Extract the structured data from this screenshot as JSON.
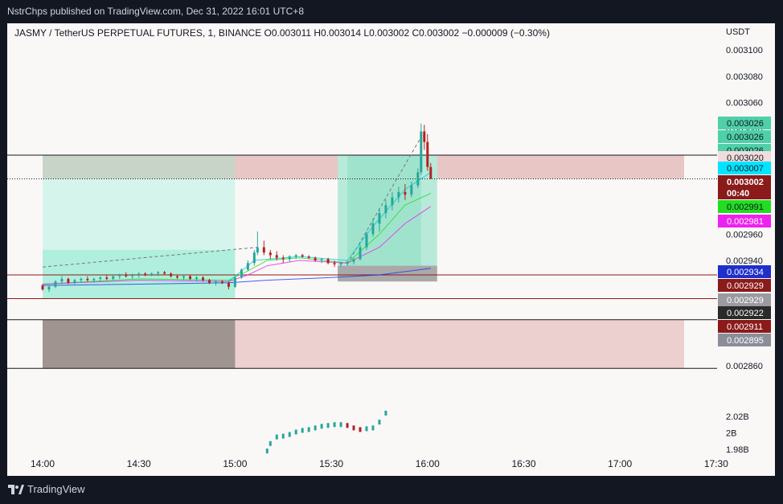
{
  "header": {
    "publish_line": "NstrChps published on TradingView.com, Dec 31, 2022 16:01 UTC+8"
  },
  "footer": {
    "brand": "TradingView",
    "logo_icon": "tradingview-logo-icon"
  },
  "symbol_line": "JASMY / TetherUS PERPETUAL FUTURES, 1, BINANCE  O0.003011  H0.003014  L0.003002  C0.003002  −0.000009 (−0.30%)",
  "currency": "USDT",
  "chart_data": {
    "type": "candlestick",
    "symbol": "JASMY / TetherUS PERPETUAL FUTURES",
    "interval": "1",
    "exchange": "BINANCE",
    "ohlc_header": {
      "open": 0.003011,
      "high": 0.003014,
      "low": 0.003002,
      "close": 0.003002,
      "change": -9e-06,
      "change_pct": -0.3
    },
    "price_axis": {
      "range": [
        0.002856,
        0.003105
      ],
      "ticks": [
        "0.003100",
        "0.003080",
        "0.003060",
        "0.003040",
        "0.003020",
        "0.003000",
        "0.002980",
        "0.002960",
        "0.002940",
        "0.002920",
        "0.002900",
        "0.002880",
        "0.002860"
      ],
      "tick_values": [
        0.0031,
        0.00308,
        0.00306,
        0.00304,
        0.00302,
        0.003,
        0.00298,
        0.00296,
        0.00294,
        0.00292,
        0.0029,
        0.00288,
        0.00286
      ]
    },
    "time_axis": {
      "ticks": [
        "14:00",
        "14:30",
        "15:00",
        "15:30",
        "16:00",
        "16:30",
        "17:00",
        "17:30"
      ],
      "tick_minutes": [
        0,
        30,
        60,
        90,
        120,
        150,
        180,
        210
      ]
    },
    "price_labels": [
      {
        "text": "0.003026",
        "bg": "#4fd0a8",
        "fg": "#131722"
      },
      {
        "text": "0.003026",
        "bg": "#4fd0a8",
        "fg": "#131722"
      },
      {
        "text": "0.003026",
        "bg": "#4fd0a8",
        "fg": "#131722"
      },
      {
        "text": "0.003020",
        "bg": "#f2dcdc",
        "fg": "#131722"
      },
      {
        "text": "0.003007",
        "bg": "#00e5ff",
        "fg": "#131722"
      },
      {
        "text": "0.003002",
        "bg": "#8b1a1a",
        "fg": "#ffffff"
      },
      {
        "text": "00:40",
        "bg": "#8b1a1a",
        "fg": "#ffffff"
      },
      {
        "text": "0.002991",
        "bg": "#22dd22",
        "fg": "#131722"
      },
      {
        "text": "0.002981",
        "bg": "#ee22ee",
        "fg": "#ffffff"
      },
      {
        "text": "0.002934",
        "bg": "#1f2fcc",
        "fg": "#ffffff"
      },
      {
        "text": "0.002929",
        "bg": "#8b1a1a",
        "fg": "#ffffff"
      },
      {
        "text": "0.002929",
        "bg": "#9a9aa0",
        "fg": "#ffffff"
      },
      {
        "text": "0.002922",
        "bg": "#2a2a2a",
        "fg": "#ffffff"
      },
      {
        "text": "0.002911",
        "bg": "#8b1a1a",
        "fg": "#ffffff"
      },
      {
        "text": "0.002895",
        "bg": "#8a8e98",
        "fg": "#ffffff"
      }
    ],
    "price_label_values": [
      0.003026,
      0.003026,
      0.003026,
      0.00302,
      0.003007,
      0.003002,
      0.003002,
      0.002991,
      0.002981,
      0.002934,
      0.002929,
      0.002929,
      0.002922,
      0.002911,
      0.002895
    ],
    "candles": [
      {
        "t": 0,
        "o": 0.002921,
        "h": 0.002922,
        "l": 0.002917,
        "c": 0.002918
      },
      {
        "t": 2,
        "o": 0.002918,
        "h": 0.002921,
        "l": 0.002916,
        "c": 0.00292
      },
      {
        "t": 4,
        "o": 0.00292,
        "h": 0.002925,
        "l": 0.002919,
        "c": 0.002924
      },
      {
        "t": 6,
        "o": 0.002924,
        "h": 0.002928,
        "l": 0.002922,
        "c": 0.002926
      },
      {
        "t": 8,
        "o": 0.002926,
        "h": 0.002927,
        "l": 0.002922,
        "c": 0.002923
      },
      {
        "t": 10,
        "o": 0.002923,
        "h": 0.002926,
        "l": 0.002921,
        "c": 0.002925
      },
      {
        "t": 12,
        "o": 0.002925,
        "h": 0.002927,
        "l": 0.002923,
        "c": 0.002926
      },
      {
        "t": 14,
        "o": 0.002926,
        "h": 0.002928,
        "l": 0.002924,
        "c": 0.002925
      },
      {
        "t": 16,
        "o": 0.002925,
        "h": 0.002927,
        "l": 0.002923,
        "c": 0.002926
      },
      {
        "t": 18,
        "o": 0.002926,
        "h": 0.002928,
        "l": 0.002924,
        "c": 0.002927
      },
      {
        "t": 20,
        "o": 0.002927,
        "h": 0.002929,
        "l": 0.002925,
        "c": 0.002926
      },
      {
        "t": 22,
        "o": 0.002926,
        "h": 0.002929,
        "l": 0.002925,
        "c": 0.002928
      },
      {
        "t": 24,
        "o": 0.002928,
        "h": 0.00293,
        "l": 0.002926,
        "c": 0.002929
      },
      {
        "t": 26,
        "o": 0.002929,
        "h": 0.002931,
        "l": 0.002927,
        "c": 0.002928
      },
      {
        "t": 28,
        "o": 0.002928,
        "h": 0.00293,
        "l": 0.002926,
        "c": 0.002929
      },
      {
        "t": 30,
        "o": 0.002929,
        "h": 0.002931,
        "l": 0.002927,
        "c": 0.00293
      },
      {
        "t": 32,
        "o": 0.00293,
        "h": 0.002931,
        "l": 0.002928,
        "c": 0.002929
      },
      {
        "t": 34,
        "o": 0.002929,
        "h": 0.002931,
        "l": 0.002928,
        "c": 0.00293
      },
      {
        "t": 36,
        "o": 0.00293,
        "h": 0.002932,
        "l": 0.002928,
        "c": 0.002931
      },
      {
        "t": 38,
        "o": 0.002931,
        "h": 0.002932,
        "l": 0.002929,
        "c": 0.00293
      },
      {
        "t": 40,
        "o": 0.00293,
        "h": 0.002931,
        "l": 0.002927,
        "c": 0.002928
      },
      {
        "t": 42,
        "o": 0.002928,
        "h": 0.002929,
        "l": 0.002926,
        "c": 0.002927
      },
      {
        "t": 44,
        "o": 0.002927,
        "h": 0.002929,
        "l": 0.002925,
        "c": 0.002928
      },
      {
        "t": 46,
        "o": 0.002928,
        "h": 0.002929,
        "l": 0.002925,
        "c": 0.002926
      },
      {
        "t": 48,
        "o": 0.002926,
        "h": 0.002928,
        "l": 0.002924,
        "c": 0.002927
      },
      {
        "t": 50,
        "o": 0.002927,
        "h": 0.002928,
        "l": 0.002924,
        "c": 0.002925
      },
      {
        "t": 52,
        "o": 0.002925,
        "h": 0.002926,
        "l": 0.002922,
        "c": 0.002923
      },
      {
        "t": 54,
        "o": 0.002923,
        "h": 0.002925,
        "l": 0.002921,
        "c": 0.002924
      },
      {
        "t": 56,
        "o": 0.002924,
        "h": 0.002925,
        "l": 0.002922,
        "c": 0.002923
      },
      {
        "t": 58,
        "o": 0.002923,
        "h": 0.002924,
        "l": 0.002918,
        "c": 0.00292
      },
      {
        "t": 60,
        "o": 0.00292,
        "h": 0.002928,
        "l": 0.002919,
        "c": 0.002927
      },
      {
        "t": 62,
        "o": 0.002927,
        "h": 0.002934,
        "l": 0.002926,
        "c": 0.002933
      },
      {
        "t": 64,
        "o": 0.002933,
        "h": 0.00294,
        "l": 0.002932,
        "c": 0.002938
      },
      {
        "t": 66,
        "o": 0.002938,
        "h": 0.002948,
        "l": 0.002936,
        "c": 0.002946
      },
      {
        "t": 67,
        "o": 0.002946,
        "h": 0.002962,
        "l": 0.002944,
        "c": 0.00295
      },
      {
        "t": 69,
        "o": 0.00295,
        "h": 0.002955,
        "l": 0.002944,
        "c": 0.002946
      },
      {
        "t": 71,
        "o": 0.002946,
        "h": 0.002948,
        "l": 0.002941,
        "c": 0.002944
      },
      {
        "t": 73,
        "o": 0.002944,
        "h": 0.002947,
        "l": 0.00294,
        "c": 0.002942
      },
      {
        "t": 75,
        "o": 0.002942,
        "h": 0.002944,
        "l": 0.002938,
        "c": 0.002941
      },
      {
        "t": 77,
        "o": 0.002941,
        "h": 0.002944,
        "l": 0.002939,
        "c": 0.002943
      },
      {
        "t": 79,
        "o": 0.002943,
        "h": 0.002945,
        "l": 0.002941,
        "c": 0.002944
      },
      {
        "t": 81,
        "o": 0.002944,
        "h": 0.002945,
        "l": 0.002942,
        "c": 0.002943
      },
      {
        "t": 83,
        "o": 0.002943,
        "h": 0.002944,
        "l": 0.002941,
        "c": 0.002942
      },
      {
        "t": 85,
        "o": 0.002942,
        "h": 0.002943,
        "l": 0.002939,
        "c": 0.00294
      },
      {
        "t": 87,
        "o": 0.00294,
        "h": 0.002942,
        "l": 0.002938,
        "c": 0.002941
      },
      {
        "t": 89,
        "o": 0.002941,
        "h": 0.002942,
        "l": 0.002937,
        "c": 0.002938
      },
      {
        "t": 91,
        "o": 0.002938,
        "h": 0.00294,
        "l": 0.002935,
        "c": 0.002937
      },
      {
        "t": 93,
        "o": 0.002937,
        "h": 0.002939,
        "l": 0.002935,
        "c": 0.002938
      },
      {
        "t": 95,
        "o": 0.002938,
        "h": 0.00294,
        "l": 0.002936,
        "c": 0.002939
      },
      {
        "t": 97,
        "o": 0.002939,
        "h": 0.002942,
        "l": 0.002937,
        "c": 0.002941
      },
      {
        "t": 99,
        "o": 0.002941,
        "h": 0.002952,
        "l": 0.00294,
        "c": 0.00295
      },
      {
        "t": 101,
        "o": 0.00295,
        "h": 0.002962,
        "l": 0.002948,
        "c": 0.00296
      },
      {
        "t": 103,
        "o": 0.00296,
        "h": 0.002972,
        "l": 0.002958,
        "c": 0.002968
      },
      {
        "t": 105,
        "o": 0.002968,
        "h": 0.00298,
        "l": 0.002962,
        "c": 0.002976
      },
      {
        "t": 107,
        "o": 0.002976,
        "h": 0.002986,
        "l": 0.002972,
        "c": 0.002982
      },
      {
        "t": 109,
        "o": 0.002982,
        "h": 0.002992,
        "l": 0.002978,
        "c": 0.002988
      },
      {
        "t": 111,
        "o": 0.002988,
        "h": 0.002996,
        "l": 0.002984,
        "c": 0.002992
      },
      {
        "t": 113,
        "o": 0.002992,
        "h": 0.002998,
        "l": 0.002986,
        "c": 0.00299
      },
      {
        "t": 115,
        "o": 0.00299,
        "h": 0.003,
        "l": 0.002988,
        "c": 0.002997
      },
      {
        "t": 117,
        "o": 0.002997,
        "h": 0.00301,
        "l": 0.002995,
        "c": 0.003007
      },
      {
        "t": 118,
        "o": 0.003007,
        "h": 0.003044,
        "l": 0.003005,
        "c": 0.003038
      },
      {
        "t": 119,
        "o": 0.003038,
        "h": 0.003043,
        "l": 0.003024,
        "c": 0.00303
      },
      {
        "t": 120,
        "o": 0.00303,
        "h": 0.003036,
        "l": 0.003008,
        "c": 0.003011
      },
      {
        "t": 121,
        "o": 0.003011,
        "h": 0.003014,
        "l": 0.003002,
        "c": 0.003002
      }
    ],
    "moving_averages": [
      {
        "color": "#22dd22",
        "points": [
          [
            0,
            0.002922
          ],
          [
            30,
            0.002926
          ],
          [
            58,
            0.002925
          ],
          [
            64,
            0.002932
          ],
          [
            70,
            0.00294
          ],
          [
            80,
            0.002942
          ],
          [
            95,
            0.002938
          ],
          [
            105,
            0.00296
          ],
          [
            113,
            0.002982
          ],
          [
            121,
            0.002991
          ]
        ]
      },
      {
        "color": "#ee22ee",
        "points": [
          [
            0,
            0.002922
          ],
          [
            30,
            0.002925
          ],
          [
            58,
            0.002924
          ],
          [
            64,
            0.002929
          ],
          [
            70,
            0.002936
          ],
          [
            80,
            0.00294
          ],
          [
            95,
            0.002938
          ],
          [
            105,
            0.00295
          ],
          [
            113,
            0.002968
          ],
          [
            121,
            0.002981
          ]
        ]
      },
      {
        "color": "#2233ee",
        "points": [
          [
            0,
            0.002921
          ],
          [
            30,
            0.002922
          ],
          [
            58,
            0.002923
          ],
          [
            70,
            0.002925
          ],
          [
            90,
            0.002927
          ],
          [
            105,
            0.002929
          ],
          [
            121,
            0.002934
          ]
        ]
      },
      {
        "color": "#00cccc",
        "points": [
          [
            58,
            0.002924
          ],
          [
            66,
            0.00294
          ],
          [
            80,
            0.002943
          ],
          [
            95,
            0.00294
          ],
          [
            103,
            0.002966
          ],
          [
            113,
            0.002994
          ],
          [
            121,
            0.003007
          ]
        ]
      }
    ],
    "horizontal_levels": [
      {
        "price": 0.00302,
        "color": "#131722"
      },
      {
        "price": 0.003002,
        "color": "#131722",
        "style": "dotted"
      },
      {
        "price": 0.002929,
        "color": "#8b1a1a"
      },
      {
        "price": 0.002911,
        "color": "#8b1a1a"
      },
      {
        "price": 0.002895,
        "color": "#131722"
      },
      {
        "price": 0.002858,
        "color": "#131722"
      }
    ],
    "zones": [
      {
        "t0": 0,
        "t1": 200,
        "p0": 0.00302,
        "p1": 0.003002,
        "color": "#e8c6c6"
      },
      {
        "t0": 0,
        "t1": 60,
        "p0": 0.00302,
        "p1": 0.003002,
        "color": "#c8d4c8"
      },
      {
        "t0": 0,
        "t1": 200,
        "p0": 0.002895,
        "p1": 0.002858,
        "color": "#ecd0d0"
      },
      {
        "t0": 0,
        "t1": 60,
        "p0": 0.002895,
        "p1": 0.002858,
        "color": "#a09490"
      },
      {
        "t0": 0,
        "t1": 60,
        "p0": 0.003002,
        "p1": 0.002929,
        "color": "#d5f5ec"
      },
      {
        "t0": 0,
        "t1": 60,
        "p0": 0.002948,
        "p1": 0.002911,
        "color": "#b0efdd"
      },
      {
        "t0": 92,
        "t1": 123,
        "p0": 0.00302,
        "p1": 0.002936,
        "color": "#b8ead9"
      },
      {
        "t0": 95,
        "t1": 118,
        "p0": 0.00302,
        "p1": 0.002936,
        "color": "#a0e3cd"
      },
      {
        "t0": 92,
        "t1": 123,
        "p0": 0.002936,
        "p1": 0.002924,
        "color": "#a9a9a9"
      }
    ],
    "trend_lines": [
      {
        "from": [
          0,
          0.002935
        ],
        "to": [
          67,
          0.00295
        ],
        "color": "#777777",
        "style": "dashed"
      },
      {
        "from": [
          95,
          0.002937
        ],
        "to": [
          119,
          0.003038
        ],
        "color": "#777777",
        "style": "dashed"
      }
    ],
    "volume_axis": {
      "ticks": [
        "2.02B",
        "2B",
        "1.98B"
      ],
      "tick_values": [
        2.02,
        2.0,
        1.98
      ]
    },
    "volume_series": [
      {
        "t": 70,
        "v": 1.978
      },
      {
        "t": 71,
        "v": 1.987
      },
      {
        "t": 73,
        "v": 1.995
      },
      {
        "t": 75,
        "v": 1.996
      },
      {
        "t": 77,
        "v": 1.998
      },
      {
        "t": 79,
        "v": 2.001
      },
      {
        "t": 81,
        "v": 2.003
      },
      {
        "t": 83,
        "v": 2.004
      },
      {
        "t": 85,
        "v": 2.006
      },
      {
        "t": 87,
        "v": 2.008
      },
      {
        "t": 89,
        "v": 2.009
      },
      {
        "t": 91,
        "v": 2.01
      },
      {
        "t": 93,
        "v": 2.01
      },
      {
        "t": 95,
        "v": 2.009
      },
      {
        "t": 97,
        "v": 2.006
      },
      {
        "t": 99,
        "v": 2.004
      },
      {
        "t": 101,
        "v": 2.005
      },
      {
        "t": 103,
        "v": 2.006
      },
      {
        "t": 105,
        "v": 2.013
      },
      {
        "t": 107,
        "v": 2.024
      }
    ]
  }
}
